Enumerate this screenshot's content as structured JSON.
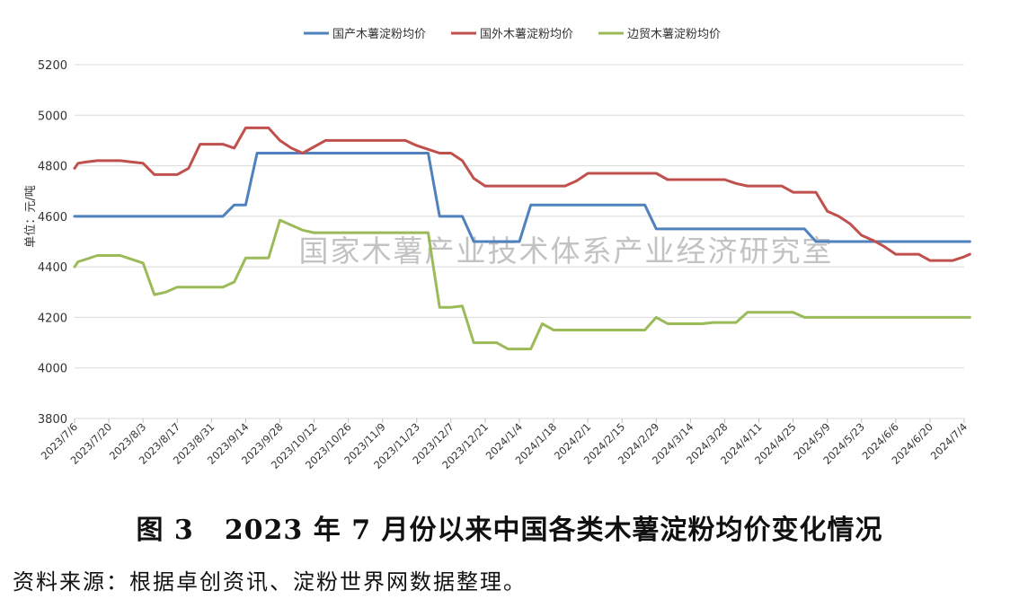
{
  "chart_data": {
    "type": "line",
    "ylabel": "单位：元/吨",
    "ylim": [
      3800,
      5200
    ],
    "yticks": [
      3800,
      4000,
      4200,
      4400,
      4600,
      4800,
      5000,
      5200
    ],
    "x_tick_labels": [
      "2023/7/6",
      "2023/7/20",
      "2023/8/3",
      "2023/8/17",
      "2023/8/31",
      "2023/9/14",
      "2023/9/28",
      "2023/10/12",
      "2023/10/26",
      "2023/11/9",
      "2023/11/23",
      "2023/12/7",
      "2023/12/21",
      "2024/1/4",
      "2024/1/18",
      "2024/2/1",
      "2024/2/15",
      "2024/2/29",
      "2024/3/14",
      "2024/3/28",
      "2024/4/11",
      "2024/4/25",
      "2024/5/9",
      "2024/5/23",
      "2024/6/6",
      "2024/6/20",
      "2024/7/4"
    ],
    "grid": true,
    "legend_position": "top-center",
    "watermark": "国家木薯产业技术体系产业经济研究室",
    "series": [
      {
        "name": "国产木薯淀粉均价",
        "color": "#4F81BD",
        "points": [
          [
            0,
            4600
          ],
          [
            2,
            4600
          ],
          [
            4,
            4600
          ],
          [
            6,
            4600
          ],
          [
            8,
            4600
          ],
          [
            10,
            4600
          ],
          [
            12,
            4600
          ],
          [
            14,
            4600
          ],
          [
            16,
            4600
          ],
          [
            18,
            4600
          ],
          [
            20,
            4600
          ],
          [
            22,
            4600
          ],
          [
            24,
            4600
          ],
          [
            26,
            4600
          ],
          [
            28,
            4645
          ],
          [
            30,
            4645
          ],
          [
            32,
            4850
          ],
          [
            34,
            4850
          ],
          [
            36,
            4850
          ],
          [
            38,
            4850
          ],
          [
            40,
            4850
          ],
          [
            42,
            4850
          ],
          [
            44,
            4850
          ],
          [
            46,
            4850
          ],
          [
            48,
            4850
          ],
          [
            50,
            4850
          ],
          [
            52,
            4850
          ],
          [
            54,
            4850
          ],
          [
            56,
            4850
          ],
          [
            58,
            4850
          ],
          [
            60,
            4850
          ],
          [
            62,
            4850
          ],
          [
            64,
            4600
          ],
          [
            66,
            4600
          ],
          [
            68,
            4600
          ],
          [
            70,
            4500
          ],
          [
            72,
            4500
          ],
          [
            74,
            4500
          ],
          [
            76,
            4500
          ],
          [
            78,
            4500
          ],
          [
            80,
            4645
          ],
          [
            82,
            4645
          ],
          [
            84,
            4645
          ],
          [
            86,
            4645
          ],
          [
            88,
            4645
          ],
          [
            90,
            4645
          ],
          [
            92,
            4645
          ],
          [
            94,
            4645
          ],
          [
            96,
            4645
          ],
          [
            98,
            4645
          ],
          [
            100,
            4645
          ],
          [
            102,
            4550
          ],
          [
            104,
            4550
          ],
          [
            106,
            4550
          ],
          [
            108,
            4550
          ],
          [
            110,
            4550
          ],
          [
            112,
            4550
          ],
          [
            114,
            4550
          ],
          [
            116,
            4550
          ],
          [
            118,
            4550
          ],
          [
            120,
            4550
          ],
          [
            122,
            4550
          ],
          [
            124,
            4550
          ],
          [
            126,
            4550
          ],
          [
            128,
            4550
          ],
          [
            130,
            4500
          ],
          [
            132,
            4500
          ],
          [
            134,
            4500
          ],
          [
            136,
            4500
          ],
          [
            138,
            4500
          ],
          [
            140,
            4500
          ],
          [
            142,
            4500
          ],
          [
            144,
            4500
          ],
          [
            146,
            4500
          ],
          [
            148,
            4500
          ],
          [
            150,
            4500
          ],
          [
            152,
            4500
          ],
          [
            154,
            4500
          ],
          [
            156,
            4500
          ],
          [
            157,
            4500
          ]
        ]
      },
      {
        "name": "国外木薯淀粉均价",
        "color": "#C0504D",
        "points": [
          [
            0,
            4790
          ],
          [
            0.6,
            4810
          ],
          [
            2,
            4815
          ],
          [
            4,
            4820
          ],
          [
            6,
            4820
          ],
          [
            8,
            4820
          ],
          [
            10,
            4815
          ],
          [
            12,
            4810
          ],
          [
            14,
            4765
          ],
          [
            16,
            4765
          ],
          [
            18,
            4765
          ],
          [
            20,
            4790
          ],
          [
            22,
            4885
          ],
          [
            24,
            4885
          ],
          [
            26,
            4885
          ],
          [
            28,
            4870
          ],
          [
            30,
            4950
          ],
          [
            32,
            4950
          ],
          [
            34,
            4950
          ],
          [
            36,
            4900
          ],
          [
            38,
            4870
          ],
          [
            40,
            4850
          ],
          [
            42,
            4875
          ],
          [
            44,
            4900
          ],
          [
            46,
            4900
          ],
          [
            48,
            4900
          ],
          [
            50,
            4900
          ],
          [
            52,
            4900
          ],
          [
            54,
            4900
          ],
          [
            56,
            4900
          ],
          [
            58,
            4900
          ],
          [
            60,
            4880
          ],
          [
            62,
            4865
          ],
          [
            64,
            4850
          ],
          [
            66,
            4850
          ],
          [
            68,
            4820
          ],
          [
            70,
            4750
          ],
          [
            72,
            4720
          ],
          [
            74,
            4720
          ],
          [
            76,
            4720
          ],
          [
            78,
            4720
          ],
          [
            80,
            4720
          ],
          [
            82,
            4720
          ],
          [
            84,
            4720
          ],
          [
            86,
            4720
          ],
          [
            88,
            4740
          ],
          [
            90,
            4770
          ],
          [
            92,
            4770
          ],
          [
            94,
            4770
          ],
          [
            96,
            4770
          ],
          [
            98,
            4770
          ],
          [
            100,
            4770
          ],
          [
            102,
            4770
          ],
          [
            104,
            4745
          ],
          [
            106,
            4745
          ],
          [
            108,
            4745
          ],
          [
            110,
            4745
          ],
          [
            112,
            4745
          ],
          [
            114,
            4745
          ],
          [
            116,
            4730
          ],
          [
            118,
            4720
          ],
          [
            120,
            4720
          ],
          [
            122,
            4720
          ],
          [
            124,
            4720
          ],
          [
            126,
            4695
          ],
          [
            128,
            4695
          ],
          [
            130,
            4695
          ],
          [
            132,
            4620
          ],
          [
            134,
            4600
          ],
          [
            136,
            4570
          ],
          [
            138,
            4525
          ],
          [
            140,
            4505
          ],
          [
            142,
            4480
          ],
          [
            144,
            4450
          ],
          [
            146,
            4450
          ],
          [
            148,
            4450
          ],
          [
            150,
            4425
          ],
          [
            152,
            4425
          ],
          [
            154,
            4425
          ],
          [
            156,
            4440
          ],
          [
            157,
            4450
          ]
        ]
      },
      {
        "name": "边贸木薯淀粉均价",
        "color": "#9BBB59",
        "points": [
          [
            0,
            4400
          ],
          [
            0.6,
            4420
          ],
          [
            2,
            4430
          ],
          [
            4,
            4445
          ],
          [
            6,
            4445
          ],
          [
            8,
            4445
          ],
          [
            10,
            4430
          ],
          [
            12,
            4415
          ],
          [
            14,
            4290
          ],
          [
            16,
            4300
          ],
          [
            18,
            4320
          ],
          [
            20,
            4320
          ],
          [
            22,
            4320
          ],
          [
            24,
            4320
          ],
          [
            26,
            4320
          ],
          [
            28,
            4340
          ],
          [
            30,
            4435
          ],
          [
            32,
            4435
          ],
          [
            34,
            4435
          ],
          [
            36,
            4585
          ],
          [
            38,
            4565
          ],
          [
            40,
            4545
          ],
          [
            42,
            4535
          ],
          [
            44,
            4535
          ],
          [
            46,
            4535
          ],
          [
            48,
            4535
          ],
          [
            50,
            4535
          ],
          [
            52,
            4535
          ],
          [
            54,
            4535
          ],
          [
            56,
            4535
          ],
          [
            58,
            4535
          ],
          [
            60,
            4535
          ],
          [
            62,
            4535
          ],
          [
            64,
            4240
          ],
          [
            66,
            4240
          ],
          [
            68,
            4245
          ],
          [
            70,
            4100
          ],
          [
            72,
            4100
          ],
          [
            74,
            4100
          ],
          [
            76,
            4075
          ],
          [
            78,
            4075
          ],
          [
            80,
            4075
          ],
          [
            82,
            4175
          ],
          [
            84,
            4150
          ],
          [
            86,
            4150
          ],
          [
            88,
            4150
          ],
          [
            90,
            4150
          ],
          [
            92,
            4150
          ],
          [
            94,
            4150
          ],
          [
            96,
            4150
          ],
          [
            98,
            4150
          ],
          [
            100,
            4150
          ],
          [
            102,
            4200
          ],
          [
            104,
            4175
          ],
          [
            106,
            4175
          ],
          [
            108,
            4175
          ],
          [
            110,
            4175
          ],
          [
            112,
            4180
          ],
          [
            114,
            4180
          ],
          [
            116,
            4180
          ],
          [
            118,
            4220
          ],
          [
            120,
            4220
          ],
          [
            122,
            4220
          ],
          [
            124,
            4220
          ],
          [
            126,
            4220
          ],
          [
            128,
            4200
          ],
          [
            130,
            4200
          ],
          [
            132,
            4200
          ],
          [
            134,
            4200
          ],
          [
            136,
            4200
          ],
          [
            138,
            4200
          ],
          [
            140,
            4200
          ],
          [
            142,
            4200
          ],
          [
            144,
            4200
          ],
          [
            146,
            4200
          ],
          [
            148,
            4200
          ],
          [
            150,
            4200
          ],
          [
            152,
            4200
          ],
          [
            154,
            4200
          ],
          [
            156,
            4200
          ],
          [
            157,
            4200
          ]
        ]
      }
    ]
  },
  "caption": {
    "figure_no": "图 3",
    "title": "2023 年 7 月份以来中国各类木薯淀粉均价变化情况"
  },
  "source_note": "资料来源：根据卓创资讯、淀粉世界网数据整理。"
}
